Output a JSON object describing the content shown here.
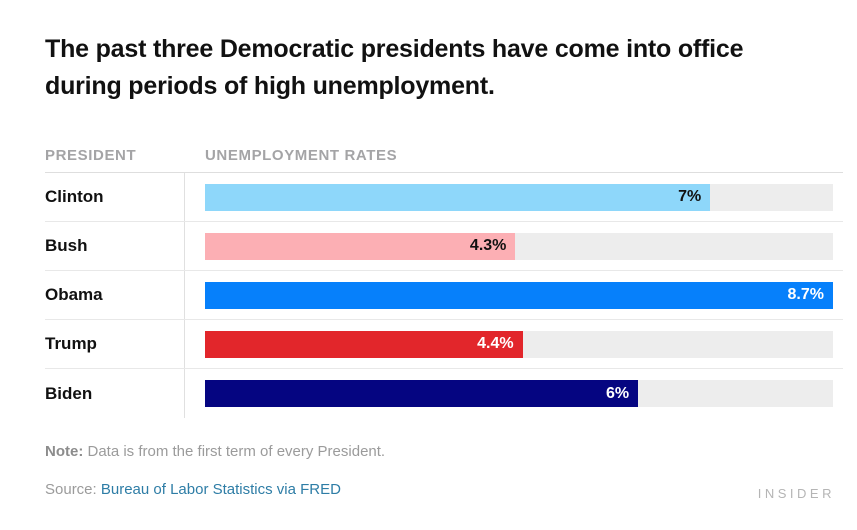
{
  "title": "The past three Democratic presidents have come into office during periods of high unemployment.",
  "chart_data": {
    "type": "bar",
    "orientation": "horizontal",
    "title": "The past three Democratic presidents have come into office during periods of high unemployment.",
    "column_headers": {
      "president": "PRESIDENT",
      "rates": "UNEMPLOYMENT RATES"
    },
    "categories": [
      "Clinton",
      "Bush",
      "Obama",
      "Trump",
      "Biden"
    ],
    "values": [
      7,
      4.3,
      8.7,
      4.4,
      6
    ],
    "value_labels": [
      "7%",
      "4.3%",
      "8.7%",
      "4.4%",
      "6%"
    ],
    "bar_colors": [
      "#8ed7fa",
      "#fcafb4",
      "#0680fb",
      "#e2262b",
      "#050581"
    ],
    "value_label_colors": [
      "#111111",
      "#111111",
      "#ffffff",
      "#ffffff",
      "#ffffff"
    ],
    "track_color": "#ededed",
    "xlim": [
      0,
      8.7
    ],
    "grid": false,
    "legend": false
  },
  "note": {
    "label": "Note:",
    "text": " Data is from the first term of every President."
  },
  "source": {
    "label": "Source: ",
    "link_text": "Bureau of Labor Statistics via FRED",
    "link_color": "#2e7da6"
  },
  "branding": "INSIDER"
}
